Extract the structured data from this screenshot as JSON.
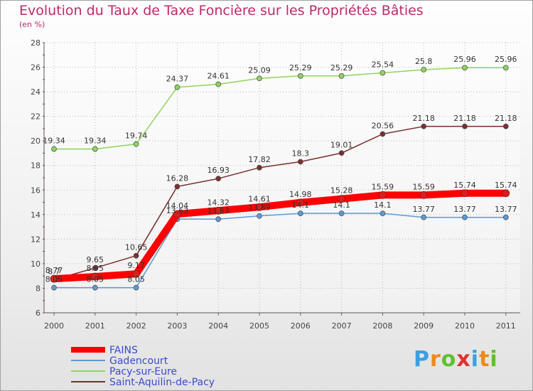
{
  "chart_data": {
    "type": "line",
    "title": "Evolution du Taux de Taxe Foncière sur les Propriétés Bâties",
    "subtitle": "(en %)",
    "x": [
      "2000",
      "2001",
      "2002",
      "2003",
      "2004",
      "2005",
      "2006",
      "2007",
      "2008",
      "2009",
      "2010",
      "2011"
    ],
    "ylim": [
      6,
      28
    ],
    "yticks": [
      "6",
      "8",
      "10",
      "12",
      "14",
      "16",
      "18",
      "20",
      "22",
      "24",
      "26",
      "28"
    ],
    "grid": true,
    "series": [
      {
        "name": "FAINS",
        "color": "#ff0000",
        "labels": [
          "8.77",
          "8.95",
          "9.17",
          "14.04",
          "14.32",
          "14.61",
          "14.98",
          "15.28",
          "15.59",
          "15.59",
          "15.74",
          "15.74"
        ],
        "values": [
          8.77,
          8.95,
          9.17,
          14.04,
          14.32,
          14.61,
          14.98,
          15.28,
          15.59,
          15.59,
          15.74,
          15.74
        ]
      },
      {
        "name": "Gadencourt",
        "color": "#5b9bd5",
        "labels": [
          "8.05",
          "8.05",
          "8.05",
          "13.63",
          "13.63",
          "13.89",
          "14.1",
          "14.1",
          "14.1",
          "13.77",
          "13.77",
          "13.77"
        ],
        "values": [
          8.05,
          8.05,
          8.05,
          13.63,
          13.63,
          13.89,
          14.1,
          14.1,
          14.1,
          13.77,
          13.77,
          13.77
        ]
      },
      {
        "name": "Pacy-sur-Eure",
        "color": "#8fd460",
        "labels": [
          "19.34",
          "19.34",
          "19.74",
          "24.37",
          "24.61",
          "25.09",
          "25.29",
          "25.29",
          "25.54",
          "25.8",
          "25.96",
          "25.96"
        ],
        "values": [
          19.34,
          19.34,
          19.74,
          24.37,
          24.61,
          25.09,
          25.29,
          25.29,
          25.54,
          25.8,
          25.96,
          25.96
        ]
      },
      {
        "name": "Saint-Aquilin-de-Pacy",
        "color": "#7a2e2e",
        "labels": [
          "8.7",
          "9.65",
          "10.65",
          "16.28",
          "16.93",
          "17.82",
          "18.3",
          "19.01",
          "20.56",
          "21.18",
          "21.18",
          "21.18"
        ],
        "values": [
          8.7,
          9.65,
          10.65,
          16.28,
          16.93,
          17.82,
          18.3,
          19.01,
          20.56,
          21.18,
          21.18,
          21.18
        ]
      }
    ],
    "legend_position": "bottom-left"
  },
  "logo": {
    "letters": [
      "P",
      "r",
      "o",
      "x",
      "i",
      "t",
      "i"
    ],
    "colors": [
      "#3aa0e0",
      "#f08a1a",
      "#60c030",
      "#e03030",
      "#3aa0e0",
      "#f08a1a",
      "#60c030"
    ]
  }
}
